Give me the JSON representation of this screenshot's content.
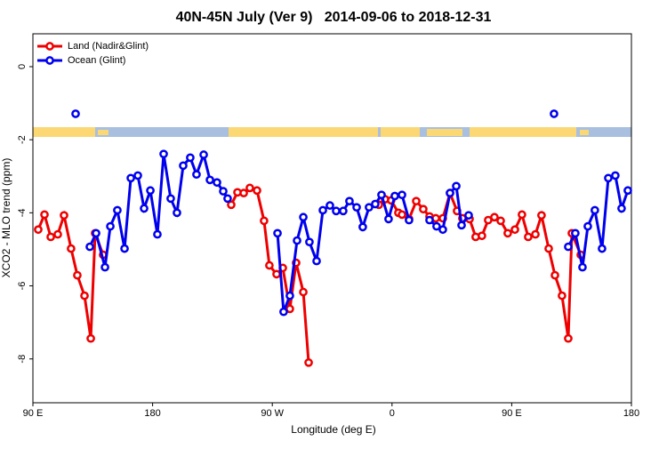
{
  "chart_data": {
    "type": "line",
    "title": "40N-45N July (Ver 9)   2014-09-06 to 2018-12-31",
    "xlabel": "Longitude (deg E)",
    "ylabel": "XCO2 - MLO trend (ppm)",
    "xlim": [
      90,
      540
    ],
    "xticks": [
      {
        "value": 90,
        "label": "90 E"
      },
      {
        "value": 180,
        "label": "180"
      },
      {
        "value": 270,
        "label": "90 W"
      },
      {
        "value": 360,
        "label": "0"
      },
      {
        "value": 450,
        "label": "90 E"
      },
      {
        "value": 540,
        "label": "180"
      }
    ],
    "ylim": [
      -9.2,
      0.9
    ],
    "yticks": [
      0,
      -2,
      -4,
      -6,
      -8
    ],
    "legend": "top-left",
    "series": [
      {
        "name": "Land (Nadir&Glint)",
        "color": "#ee0000",
        "x": [
          94.0,
          98.7,
          103.4,
          108.7,
          113.4,
          118.7,
          123.4,
          128.8,
          133.5,
          136.8,
          142.8,
          null,
          239.1,
          243.8,
          248.5,
          253.1,
          258.5,
          263.8,
          267.8,
          273.2,
          277.9,
          283.2,
          287.9,
          293.3,
          297.3,
          null,
          350.1,
          354.8,
          359.4,
          364.8,
          367.5,
          372.8,
          378.2,
          383.5,
          388.2,
          392.9,
          398.2,
          403.6,
          408.9,
          412.9,
          418.3,
          422.9,
          427.6,
          432.3,
          437.0,
          441.7,
          447.0,
          452.4,
          457.7,
          462.4,
          467.8,
          472.4,
          477.8,
          482.5,
          487.8,
          492.5,
          495.2,
          501.9
        ],
        "values": [
          -4.46,
          -4.05,
          -4.66,
          -4.59,
          -4.07,
          -4.98,
          -5.71,
          -6.27,
          -7.44,
          -4.56,
          -5.15,
          null,
          -3.78,
          -3.44,
          -3.46,
          -3.32,
          -3.39,
          -4.22,
          -5.44,
          -5.68,
          -5.51,
          -6.63,
          -5.37,
          -6.17,
          -8.1,
          null,
          -3.78,
          -3.63,
          -3.66,
          -4.0,
          -4.05,
          -4.17,
          -3.68,
          -3.9,
          -4.1,
          -4.15,
          -4.15,
          -3.46,
          -3.95,
          -4.15,
          -4.17,
          -4.66,
          -4.63,
          -4.2,
          -4.12,
          -4.22,
          -4.56,
          -4.46,
          -4.05,
          -4.66,
          -4.59,
          -4.07,
          -4.98,
          -5.71,
          -6.27,
          -7.44,
          -4.56,
          -5.15
        ]
      },
      {
        "name": "Ocean (Glint)",
        "color": "#0000ee",
        "x": [
          122.1,
          null,
          132.8,
          137.5,
          144.2,
          148.2,
          153.5,
          158.9,
          163.6,
          168.9,
          173.6,
          178.3,
          183.6,
          188.3,
          193.6,
          198.3,
          203.0,
          208.3,
          213.0,
          218.4,
          223.1,
          228.4,
          233.1,
          236.4,
          null,
          273.9,
          278.5,
          283.2,
          288.6,
          293.3,
          297.9,
          303.3,
          308.0,
          313.3,
          318.0,
          323.3,
          328.0,
          333.4,
          338.0,
          342.7,
          347.4,
          352.1,
          357.4,
          362.1,
          367.5,
          372.8,
          null,
          388.2,
          393.5,
          398.2,
          403.6,
          408.3,
          412.3,
          417.6,
          null,
          481.8,
          null,
          492.5,
          497.8,
          503.2,
          507.2,
          512.5,
          517.9,
          522.6,
          527.9,
          532.6,
          537.3
        ],
        "values": [
          -1.29,
          null,
          -4.93,
          -4.56,
          -5.49,
          -4.37,
          -3.93,
          -4.98,
          -3.05,
          -2.98,
          -3.88,
          -3.39,
          -4.59,
          -2.39,
          -3.61,
          -4.0,
          -2.71,
          -2.49,
          -2.95,
          -2.41,
          -3.1,
          -3.17,
          -3.41,
          -3.61,
          null,
          -4.56,
          -6.71,
          -6.27,
          -4.76,
          -4.12,
          -4.8,
          -5.32,
          -3.93,
          -3.8,
          -3.95,
          -3.95,
          -3.68,
          -3.85,
          -4.39,
          -3.85,
          -3.76,
          -3.51,
          -4.17,
          -3.54,
          -3.51,
          -4.2,
          null,
          -4.2,
          -4.37,
          -4.46,
          -3.46,
          -3.27,
          -4.34,
          -4.07,
          null,
          -1.29,
          null,
          -4.93,
          -4.56,
          -5.49,
          -4.37,
          -3.93,
          -4.98,
          -3.05,
          -2.98,
          -3.88,
          -3.39
        ]
      }
    ]
  }
}
